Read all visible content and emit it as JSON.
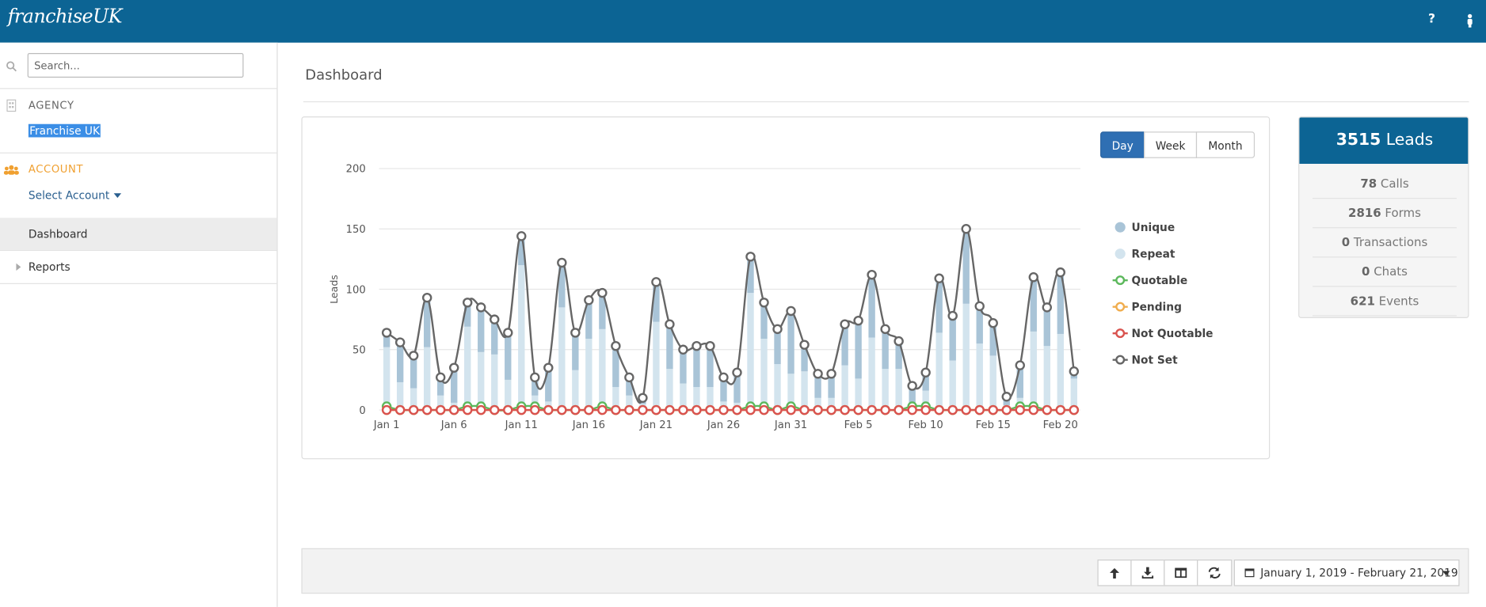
{
  "header": {
    "logo": "franchiseUK",
    "help": "?"
  },
  "sidebar": {
    "search_placeholder": "Search...",
    "agency_label": "AGENCY",
    "agency_value": "Franchise UK",
    "account_label": "ACCOUNT",
    "account_select": "Select Account",
    "nav": [
      "Dashboard",
      "Reports"
    ]
  },
  "page": {
    "title": "Dashboard"
  },
  "period_buttons": [
    "Day",
    "Week",
    "Month"
  ],
  "stats": {
    "total": {
      "value": 3515,
      "label": "Leads"
    },
    "items": [
      {
        "value": 78,
        "label": "Calls"
      },
      {
        "value": 2816,
        "label": "Forms"
      },
      {
        "value": 0,
        "label": "Transactions"
      },
      {
        "value": 0,
        "label": "Chats"
      },
      {
        "value": 621,
        "label": "Events"
      }
    ]
  },
  "toolbar": {
    "date_range": "January 1, 2019 - February 21, 2019"
  },
  "chart_data": {
    "type": "bar",
    "ylabel": "Leads",
    "categories": [
      "Jan 1",
      null,
      null,
      null,
      null,
      "Jan 6",
      null,
      null,
      null,
      null,
      "Jan 11",
      null,
      null,
      null,
      null,
      "Jan 16",
      null,
      null,
      null,
      null,
      "Jan 21",
      null,
      null,
      null,
      null,
      "Jan 26",
      null,
      null,
      null,
      null,
      "Jan 31",
      null,
      null,
      null,
      null,
      "Feb 5",
      null,
      null,
      null,
      null,
      "Feb 10",
      null,
      null,
      null,
      null,
      "Feb 15",
      null,
      null,
      null,
      null,
      "Feb 20",
      null
    ],
    "ylim": [
      0,
      200
    ],
    "yticks": [
      0,
      50,
      100,
      150,
      200
    ],
    "grid": true,
    "series": [
      {
        "name": "Unique",
        "type": "bar",
        "color": "#a9c4d7",
        "values": [
          12,
          33,
          27,
          41,
          15,
          29,
          20,
          37,
          29,
          39,
          24,
          15,
          28,
          37,
          31,
          32,
          30,
          34,
          15,
          5,
          33,
          37,
          28,
          34,
          34,
          20,
          25,
          30,
          30,
          29,
          52,
          22,
          20,
          20,
          34,
          48,
          52,
          33,
          23,
          14,
          15,
          45,
          37,
          62,
          31,
          27,
          7,
          27,
          45,
          32,
          51,
          6
        ]
      },
      {
        "name": "Repeat",
        "type": "bar",
        "color": "#d3e4ee",
        "values": [
          52,
          23,
          18,
          52,
          12,
          6,
          69,
          48,
          46,
          25,
          120,
          12,
          7,
          85,
          33,
          59,
          67,
          19,
          12,
          5,
          73,
          34,
          22,
          19,
          19,
          7,
          6,
          97,
          59,
          38,
          30,
          32,
          10,
          10,
          37,
          26,
          60,
          34,
          34,
          6,
          16,
          64,
          41,
          88,
          55,
          45,
          4,
          10,
          65,
          53,
          63,
          26
        ]
      },
      {
        "name": "Quotable",
        "type": "line",
        "color": "#5cb85c",
        "values": [
          3,
          0,
          0,
          0,
          0,
          0,
          3,
          3,
          0,
          0,
          3,
          3,
          0,
          0,
          0,
          0,
          3,
          0,
          0,
          0,
          0,
          0,
          0,
          0,
          0,
          0,
          0,
          3,
          3,
          0,
          3,
          0,
          0,
          0,
          0,
          0,
          0,
          0,
          0,
          3,
          3,
          0,
          0,
          0,
          0,
          0,
          0,
          3,
          3,
          0,
          0,
          0
        ]
      },
      {
        "name": "Pending",
        "type": "line",
        "color": "#f0ad4e",
        "values": [
          0,
          0,
          0,
          0,
          0,
          0,
          0,
          0,
          0,
          0,
          0,
          0,
          0,
          0,
          0,
          0,
          0,
          0,
          0,
          0,
          0,
          0,
          0,
          0,
          0,
          0,
          0,
          0,
          0,
          0,
          0,
          0,
          0,
          0,
          0,
          0,
          0,
          0,
          0,
          0,
          0,
          0,
          0,
          0,
          0,
          0,
          0,
          0,
          0,
          0,
          0,
          0
        ]
      },
      {
        "name": "Not Quotable",
        "type": "line",
        "color": "#d9534f",
        "values": [
          0,
          0,
          0,
          0,
          0,
          0,
          0,
          0,
          0,
          0,
          0,
          0,
          0,
          0,
          0,
          0,
          0,
          0,
          0,
          0,
          0,
          0,
          0,
          0,
          0,
          0,
          0,
          0,
          0,
          0,
          0,
          0,
          0,
          0,
          0,
          0,
          0,
          0,
          0,
          0,
          0,
          0,
          0,
          0,
          0,
          0,
          0,
          0,
          0,
          0,
          0,
          0
        ]
      },
      {
        "name": "Not Set",
        "type": "line",
        "color": "#666666",
        "values": [
          64,
          56,
          45,
          93,
          27,
          35,
          89,
          85,
          75,
          64,
          144,
          27,
          35,
          122,
          64,
          91,
          97,
          53,
          27,
          10,
          106,
          71,
          50,
          53,
          53,
          27,
          31,
          127,
          89,
          67,
          82,
          54,
          30,
          30,
          71,
          74,
          112,
          67,
          57,
          20,
          31,
          109,
          78,
          150,
          86,
          72,
          11,
          37,
          110,
          85,
          114,
          32
        ]
      }
    ]
  }
}
